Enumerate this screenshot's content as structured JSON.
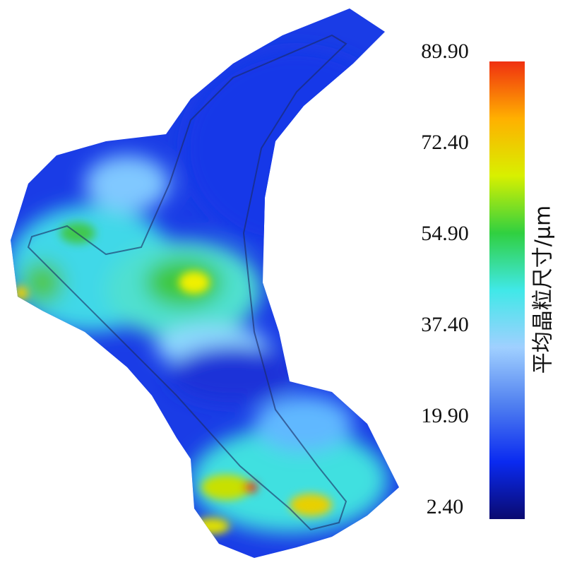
{
  "chart_data": {
    "type": "colormap",
    "colorbar_label": "平均晶粒尺寸/μm",
    "ylim": [
      2.4,
      89.9
    ],
    "yticks": [
      {
        "value": 89.9,
        "label": "89.90"
      },
      {
        "value": 72.4,
        "label": "72.40"
      },
      {
        "value": 54.9,
        "label": "54.90"
      },
      {
        "value": 37.4,
        "label": "37.40"
      },
      {
        "value": 19.9,
        "label": "19.90"
      },
      {
        "value": 2.4,
        "label": "2.40"
      }
    ],
    "colormap": [
      "#0a0a70",
      "#0a2af0",
      "#5080f0",
      "#a0d0ff",
      "#40e8e8",
      "#30d040",
      "#d8f000",
      "#ffb000",
      "#f03010"
    ]
  }
}
